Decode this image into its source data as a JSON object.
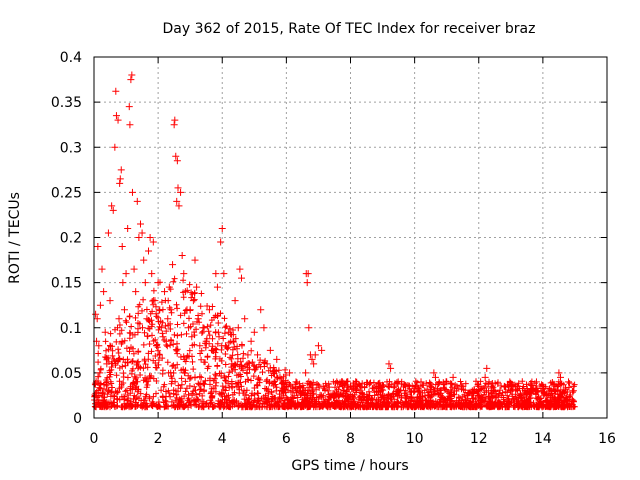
{
  "chart_data": {
    "type": "scatter",
    "title": "Day 362 of 2015, Rate Of TEC Index for receiver braz",
    "xlabel": "GPS time / hours",
    "ylabel": "ROTI / TECUs",
    "xlim": [
      0,
      16
    ],
    "ylim": [
      0,
      0.4
    ],
    "x_ticks": [
      0,
      2,
      4,
      6,
      8,
      10,
      12,
      14,
      16
    ],
    "x_tick_labels": [
      "0",
      "2",
      "4",
      "6",
      "8",
      "10",
      "12",
      "14",
      "16"
    ],
    "y_ticks": [
      0,
      0.05,
      0.1,
      0.15,
      0.2,
      0.25,
      0.3,
      0.35,
      0.4
    ],
    "y_tick_labels": [
      "0",
      "0.05",
      "0.1",
      "0.15",
      "0.2",
      "0.25",
      "0.3",
      "0.35",
      "0.4"
    ],
    "grid": true,
    "marker": "plus",
    "color": "#ff0000",
    "series": [
      {
        "name": "ROTI",
        "points": [
          [
            0.02,
            0.02
          ],
          [
            0.05,
            0.115
          ],
          [
            0.08,
            0.085
          ],
          [
            0.1,
            0.11
          ],
          [
            0.12,
            0.19
          ],
          [
            0.15,
            0.08
          ],
          [
            0.18,
            0.05
          ],
          [
            0.2,
            0.125
          ],
          [
            0.25,
            0.165
          ],
          [
            0.3,
            0.14
          ],
          [
            0.35,
            0.095
          ],
          [
            0.4,
            0.06
          ],
          [
            0.45,
            0.205
          ],
          [
            0.5,
            0.13
          ],
          [
            0.55,
            0.235
          ],
          [
            0.6,
            0.23
          ],
          [
            0.65,
            0.3
          ],
          [
            0.68,
            0.362
          ],
          [
            0.7,
            0.335
          ],
          [
            0.75,
            0.33
          ],
          [
            0.78,
            0.11
          ],
          [
            0.8,
            0.26
          ],
          [
            0.82,
            0.265
          ],
          [
            0.85,
            0.275
          ],
          [
            0.88,
            0.19
          ],
          [
            0.9,
            0.15
          ],
          [
            0.95,
            0.12
          ],
          [
            1.0,
            0.16
          ],
          [
            1.05,
            0.21
          ],
          [
            1.1,
            0.345
          ],
          [
            1.12,
            0.325
          ],
          [
            1.15,
            0.375
          ],
          [
            1.18,
            0.38
          ],
          [
            1.2,
            0.25
          ],
          [
            1.25,
            0.165
          ],
          [
            1.3,
            0.14
          ],
          [
            1.35,
            0.24
          ],
          [
            1.4,
            0.2
          ],
          [
            1.45,
            0.215
          ],
          [
            1.5,
            0.205
          ],
          [
            1.55,
            0.175
          ],
          [
            1.6,
            0.15
          ],
          [
            1.65,
            0.11
          ],
          [
            1.7,
            0.185
          ],
          [
            1.75,
            0.2
          ],
          [
            1.8,
            0.16
          ],
          [
            1.85,
            0.195
          ],
          [
            1.9,
            0.13
          ],
          [
            1.95,
            0.08
          ],
          [
            2.0,
            0.15
          ],
          [
            2.05,
            0.12
          ],
          [
            2.1,
            0.1
          ],
          [
            2.15,
            0.09
          ],
          [
            2.2,
            0.14
          ],
          [
            2.25,
            0.085
          ],
          [
            2.3,
            0.11
          ],
          [
            2.35,
            0.145
          ],
          [
            2.4,
            0.12
          ],
          [
            2.45,
            0.17
          ],
          [
            2.5,
            0.325
          ],
          [
            2.52,
            0.33
          ],
          [
            2.55,
            0.29
          ],
          [
            2.58,
            0.24
          ],
          [
            2.6,
            0.285
          ],
          [
            2.62,
            0.255
          ],
          [
            2.65,
            0.235
          ],
          [
            2.7,
            0.25
          ],
          [
            2.75,
            0.18
          ],
          [
            2.8,
            0.16
          ],
          [
            2.85,
            0.14
          ],
          [
            2.9,
            0.12
          ],
          [
            2.95,
            0.1
          ],
          [
            3.0,
            0.12
          ],
          [
            3.05,
            0.09
          ],
          [
            3.1,
            0.13
          ],
          [
            3.15,
            0.175
          ],
          [
            3.2,
            0.145
          ],
          [
            3.25,
            0.11
          ],
          [
            3.3,
            0.08
          ],
          [
            3.4,
            0.1
          ],
          [
            3.5,
            0.085
          ],
          [
            3.6,
            0.12
          ],
          [
            3.7,
            0.075
          ],
          [
            3.8,
            0.16
          ],
          [
            3.85,
            0.145
          ],
          [
            3.9,
            0.09
          ],
          [
            3.95,
            0.195
          ],
          [
            4.0,
            0.21
          ],
          [
            4.05,
            0.16
          ],
          [
            4.1,
            0.08
          ],
          [
            4.2,
            0.095
          ],
          [
            4.3,
            0.06
          ],
          [
            4.4,
            0.13
          ],
          [
            4.5,
            0.1
          ],
          [
            4.55,
            0.165
          ],
          [
            4.6,
            0.155
          ],
          [
            4.7,
            0.11
          ],
          [
            4.8,
            0.07
          ],
          [
            4.9,
            0.085
          ],
          [
            5.0,
            0.095
          ],
          [
            5.1,
            0.07
          ],
          [
            5.2,
            0.12
          ],
          [
            5.3,
            0.1
          ],
          [
            5.4,
            0.06
          ],
          [
            5.5,
            0.075
          ],
          [
            5.6,
            0.05
          ],
          [
            5.7,
            0.065
          ],
          [
            5.8,
            0.045
          ],
          [
            5.9,
            0.04
          ],
          [
            6.0,
            0.035
          ],
          [
            6.1,
            0.05
          ],
          [
            6.2,
            0.03
          ],
          [
            6.3,
            0.04
          ],
          [
            6.4,
            0.035
          ],
          [
            6.5,
            0.03
          ],
          [
            6.6,
            0.05
          ],
          [
            6.62,
            0.16
          ],
          [
            6.65,
            0.15
          ],
          [
            6.68,
            0.16
          ],
          [
            6.7,
            0.1
          ],
          [
            6.75,
            0.07
          ],
          [
            6.8,
            0.065
          ],
          [
            6.85,
            0.06
          ],
          [
            6.9,
            0.07
          ],
          [
            7.0,
            0.08
          ],
          [
            7.1,
            0.075
          ],
          [
            7.15,
            0.035
          ],
          [
            7.3,
            0.03
          ],
          [
            7.5,
            0.025
          ],
          [
            7.8,
            0.03
          ],
          [
            8.0,
            0.035
          ],
          [
            8.3,
            0.03
          ],
          [
            8.6,
            0.025
          ],
          [
            9.0,
            0.035
          ],
          [
            9.2,
            0.06
          ],
          [
            9.25,
            0.055
          ],
          [
            9.5,
            0.03
          ],
          [
            9.8,
            0.035
          ],
          [
            10.0,
            0.03
          ],
          [
            10.2,
            0.04
          ],
          [
            10.5,
            0.035
          ],
          [
            10.6,
            0.05
          ],
          [
            10.65,
            0.045
          ],
          [
            11.0,
            0.04
          ],
          [
            11.2,
            0.045
          ],
          [
            11.5,
            0.035
          ],
          [
            11.8,
            0.03
          ],
          [
            12.0,
            0.035
          ],
          [
            12.2,
            0.045
          ],
          [
            12.25,
            0.055
          ],
          [
            12.5,
            0.03
          ],
          [
            12.8,
            0.035
          ],
          [
            13.0,
            0.03
          ],
          [
            13.2,
            0.035
          ],
          [
            13.5,
            0.03
          ],
          [
            13.8,
            0.04
          ],
          [
            14.0,
            0.035
          ],
          [
            14.2,
            0.03
          ],
          [
            14.5,
            0.05
          ],
          [
            14.55,
            0.045
          ],
          [
            14.8,
            0.04
          ],
          [
            14.95,
            0.035
          ]
        ]
      }
    ]
  }
}
